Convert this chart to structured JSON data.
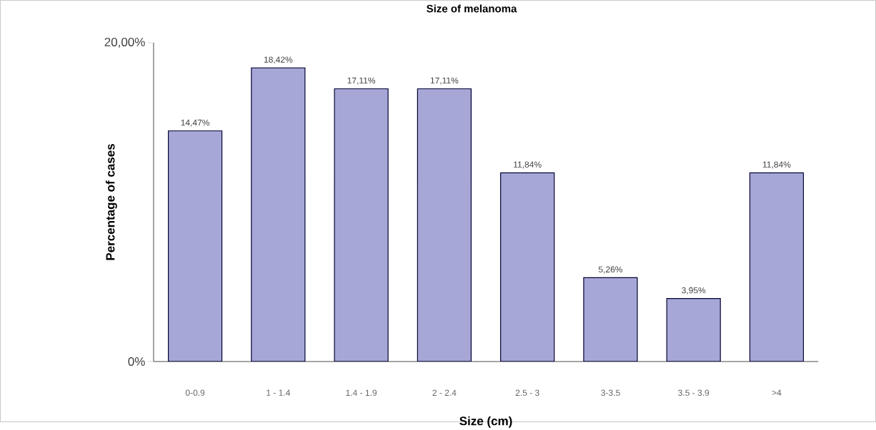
{
  "chart_data": {
    "type": "bar",
    "title": "Size of melanoma",
    "xlabel": "Size (cm)",
    "ylabel": "Percentage of cases",
    "categories": [
      "0-0.9",
      "1 - 1.4",
      "1.4 - 1.9",
      "2 - 2.4",
      "2.5 - 3",
      "3-3.5",
      "3.5 - 3.9",
      ">4"
    ],
    "values": [
      14.47,
      18.42,
      17.11,
      17.11,
      11.84,
      5.26,
      3.95,
      11.84
    ],
    "value_labels": [
      "14,47%",
      "18,42%",
      "17,11%",
      "17,11%",
      "11,84%",
      "5,26%",
      "3,95%",
      "11,84%"
    ],
    "color": "#a7a7d7",
    "ylim": [
      0,
      20
    ],
    "yticks": [
      {
        "value": 0,
        "label": "0%"
      },
      {
        "value": 20,
        "label": "20,00%"
      }
    ],
    "grid": false
  }
}
